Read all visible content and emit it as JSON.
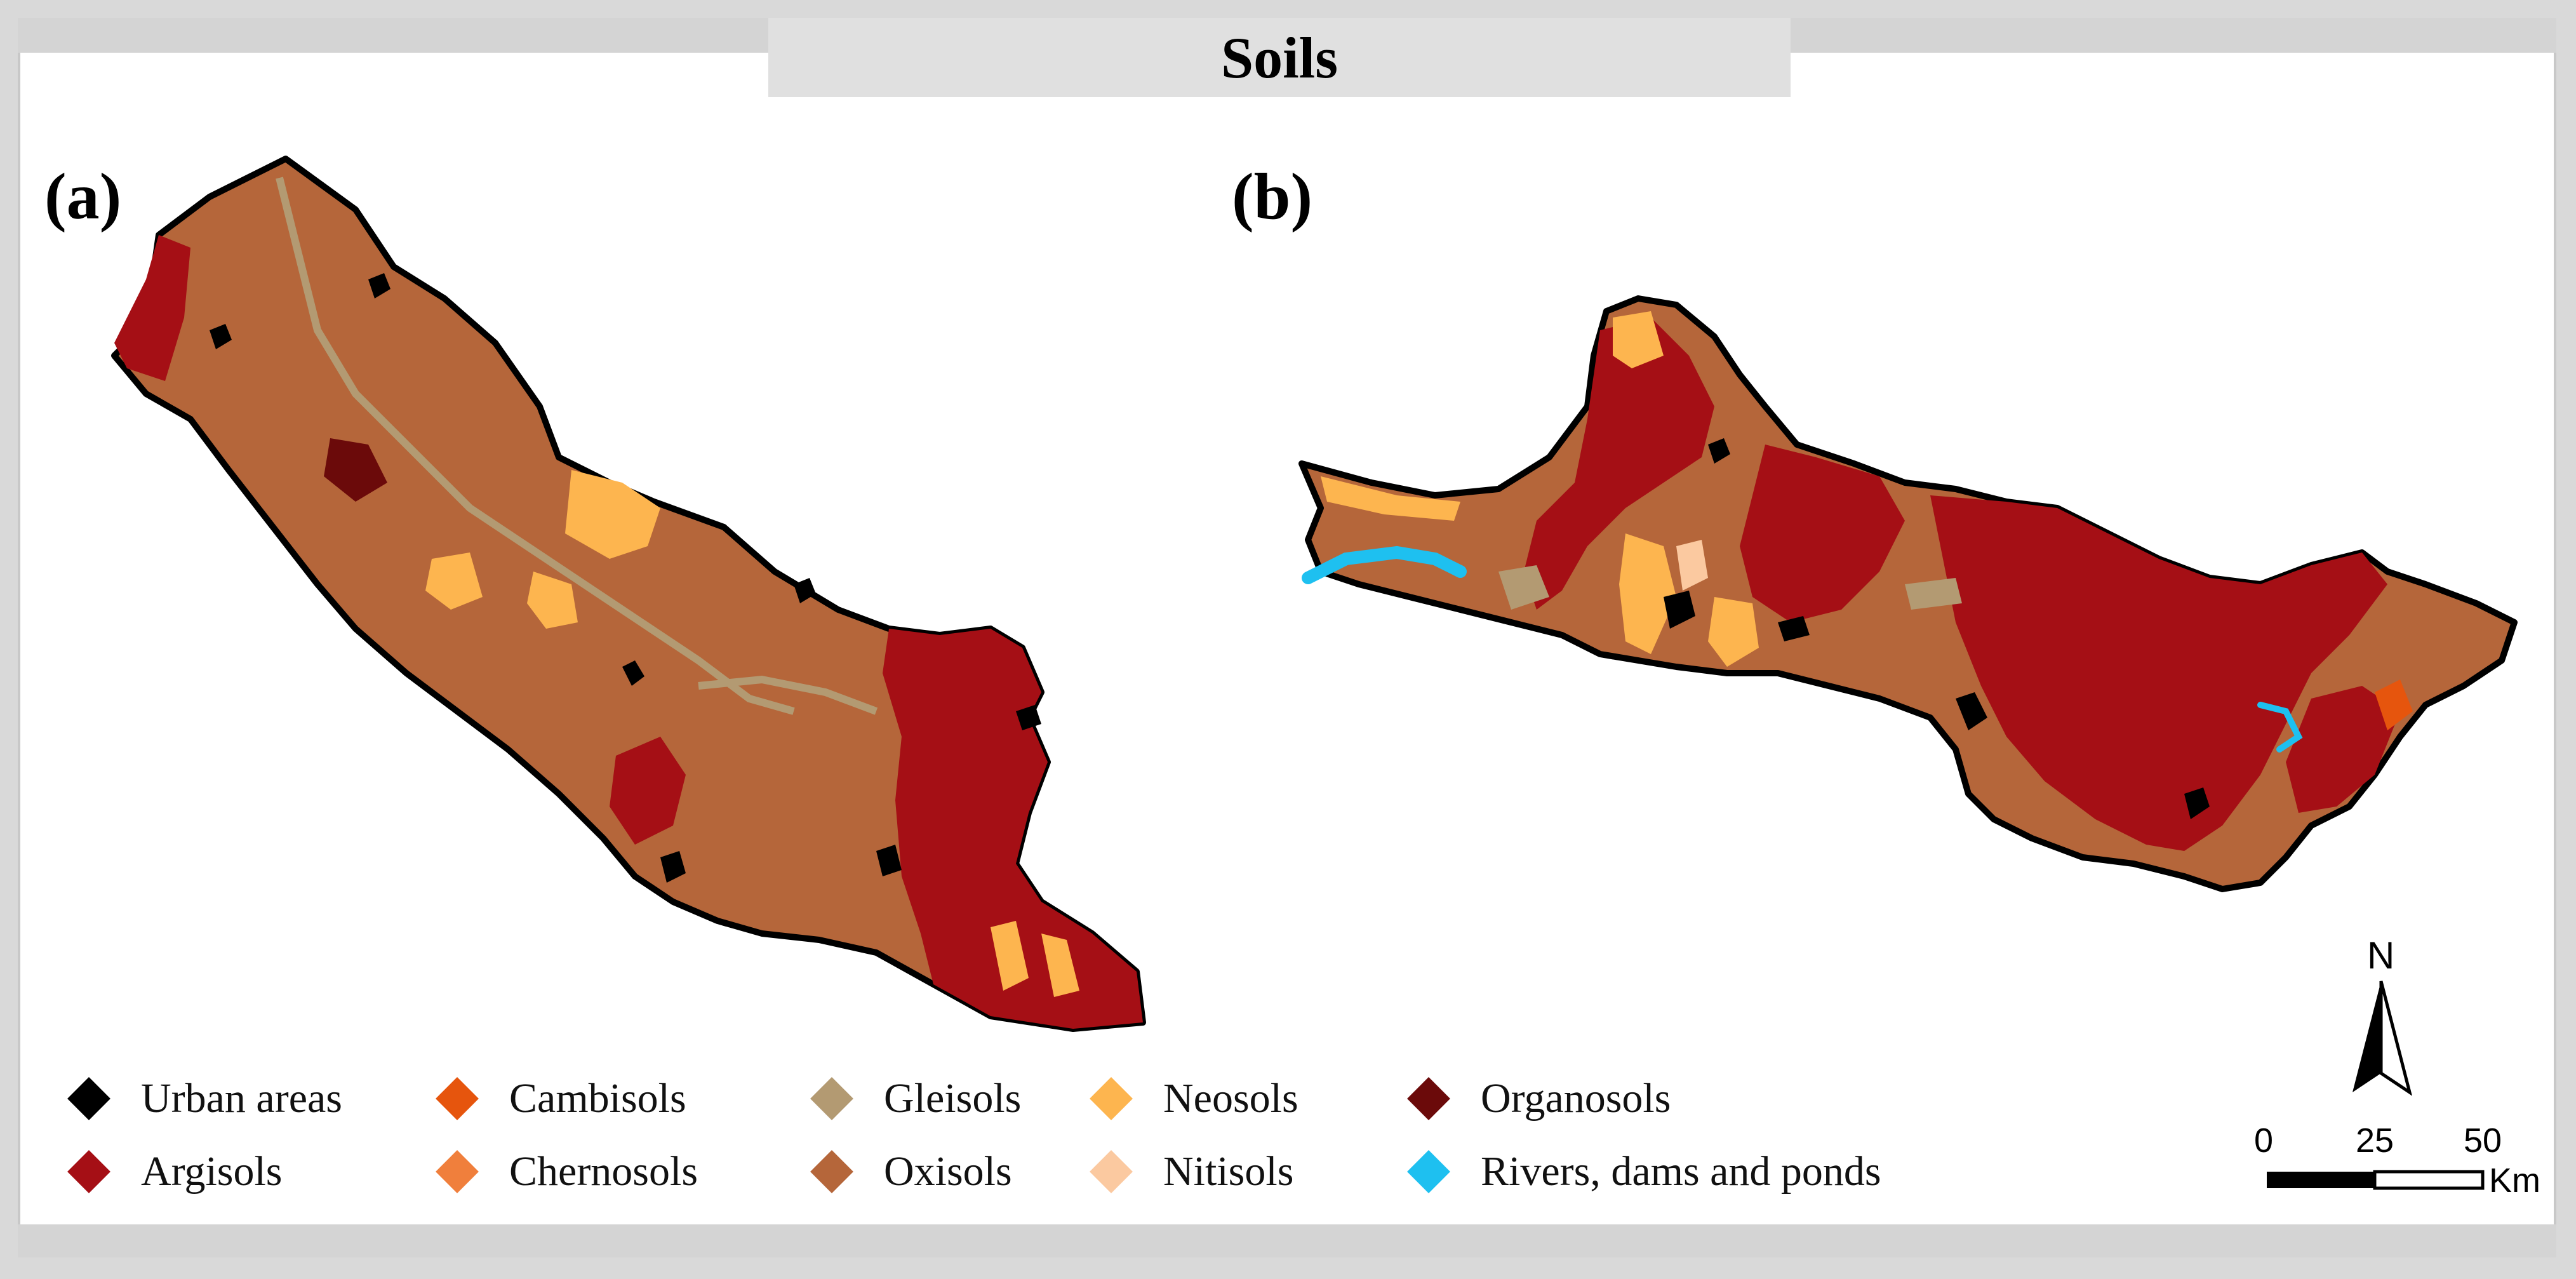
{
  "title": "Soils",
  "panels": [
    {
      "label": "(a)"
    },
    {
      "label": "(b)"
    }
  ],
  "legend": [
    {
      "label": "Urban areas",
      "color": "#000000"
    },
    {
      "label": "Argisols",
      "color": "#a50f15"
    },
    {
      "label": "Cambisols",
      "color": "#e6550d"
    },
    {
      "label": "Chernosols",
      "color": "#f07f3c"
    },
    {
      "label": "Gleisols",
      "color": "#b39a72"
    },
    {
      "label": "Oxisols",
      "color": "#b5663a"
    },
    {
      "label": "Neosols",
      "color": "#fdb54f"
    },
    {
      "label": "Nitisols",
      "color": "#fbc9a0"
    },
    {
      "label": "Organosols",
      "color": "#6b0a0a"
    },
    {
      "label": "Rivers, dams and ponds",
      "color": "#1ec0f0"
    }
  ],
  "north_arrow": {
    "letter": "N"
  },
  "scale_bar": {
    "ticks": [
      "0",
      "25",
      "50"
    ],
    "unit": "Km"
  }
}
